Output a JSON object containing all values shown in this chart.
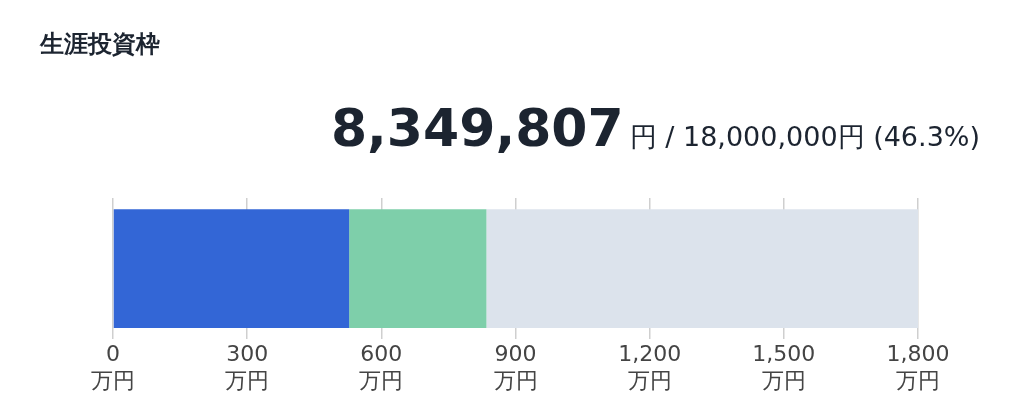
{
  "chart_data": {
    "type": "bar",
    "orientation": "horizontal",
    "stacked": true,
    "title": "生涯投資枠",
    "annotations": [
      "8,349,807",
      "円 / 18,000,000円 (46.3%)"
    ],
    "categories": [
      null
    ],
    "series": [
      {
        "color": "#3366d6",
        "values": [
          528
        ]
      },
      {
        "color": "#7ecfaa",
        "values": [
          307
        ]
      },
      {
        "color": "#dce3ec",
        "values": [
          965
        ]
      }
    ],
    "xlim": [
      0,
      1800
    ],
    "xticks": [
      {
        "value": 0,
        "label": "0\n万円"
      },
      {
        "value": 300,
        "label": "300\n万円"
      },
      {
        "value": 600,
        "label": "600\n万円"
      },
      {
        "value": 900,
        "label": "900\n万円"
      },
      {
        "value": 1200,
        "label": "1,200\n万円"
      },
      {
        "value": 1500,
        "label": "1,500\n万円"
      },
      {
        "value": 1800,
        "label": "1,800\n万円"
      }
    ],
    "grid": "x",
    "legend": false
  }
}
